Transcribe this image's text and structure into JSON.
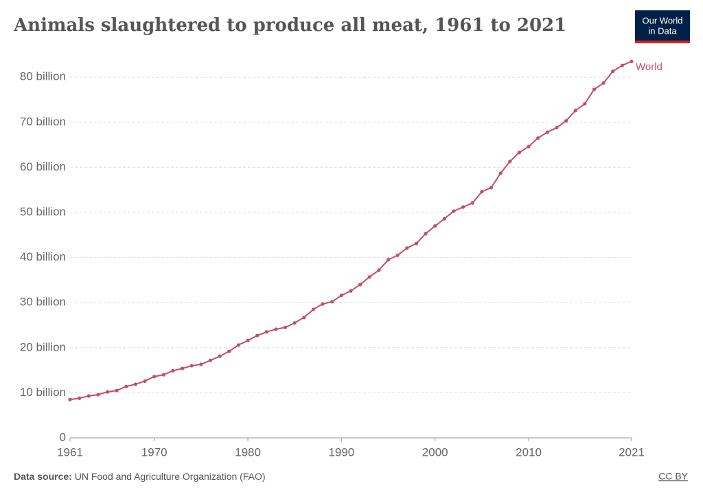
{
  "chart_data": {
    "type": "line",
    "title": "Animals slaughtered to produce all meat, 1961 to 2021",
    "x": [
      1961,
      1962,
      1963,
      1964,
      1965,
      1966,
      1967,
      1968,
      1969,
      1970,
      1971,
      1972,
      1973,
      1974,
      1975,
      1976,
      1977,
      1978,
      1979,
      1980,
      1981,
      1982,
      1983,
      1984,
      1985,
      1986,
      1987,
      1988,
      1989,
      1990,
      1991,
      1992,
      1993,
      1994,
      1995,
      1996,
      1997,
      1998,
      1999,
      2000,
      2001,
      2002,
      2003,
      2004,
      2005,
      2006,
      2007,
      2008,
      2009,
      2010,
      2011,
      2012,
      2013,
      2014,
      2015,
      2016,
      2017,
      2018,
      2019,
      2020,
      2021
    ],
    "series": [
      {
        "name": "World",
        "color": "#c15065",
        "values": [
          8.5,
          8.8,
          9.3,
          9.6,
          10.2,
          10.5,
          11.4,
          11.9,
          12.6,
          13.6,
          14.0,
          14.9,
          15.4,
          16.0,
          16.3,
          17.2,
          18.1,
          19.2,
          20.6,
          21.6,
          22.7,
          23.5,
          24.1,
          24.5,
          25.5,
          26.7,
          28.5,
          29.7,
          30.2,
          31.6,
          32.6,
          34.0,
          35.7,
          37.2,
          39.5,
          40.5,
          42.1,
          43.1,
          45.3,
          47.0,
          48.6,
          50.3,
          51.2,
          52.1,
          54.6,
          55.5,
          58.7,
          61.3,
          63.3,
          64.6,
          66.5,
          67.8,
          68.8,
          70.3,
          72.6,
          74.1,
          77.3,
          78.7,
          81.3,
          82.6,
          83.5
        ]
      }
    ],
    "xlim": [
      1961,
      2021
    ],
    "xticks": [
      1961,
      1970,
      1980,
      1990,
      2000,
      2010,
      2021
    ],
    "ylim": [
      0,
      84
    ],
    "yticks": [
      0,
      {
        "value": 10,
        "label": "10 billion"
      },
      {
        "value": 20,
        "label": "20 billion"
      },
      {
        "value": 30,
        "label": "30 billion"
      },
      {
        "value": 40,
        "label": "40 billion"
      },
      {
        "value": 50,
        "label": "50 billion"
      },
      {
        "value": 60,
        "label": "60 billion"
      },
      {
        "value": 70,
        "label": "70 billion"
      },
      {
        "value": 80,
        "label": "80 billion"
      }
    ],
    "grid": true
  },
  "logo": [
    "Our World",
    "in Data"
  ],
  "source": {
    "label": "Data source:",
    "text": "UN Food and Agriculture Organization (FAO)"
  },
  "license": "CC BY"
}
